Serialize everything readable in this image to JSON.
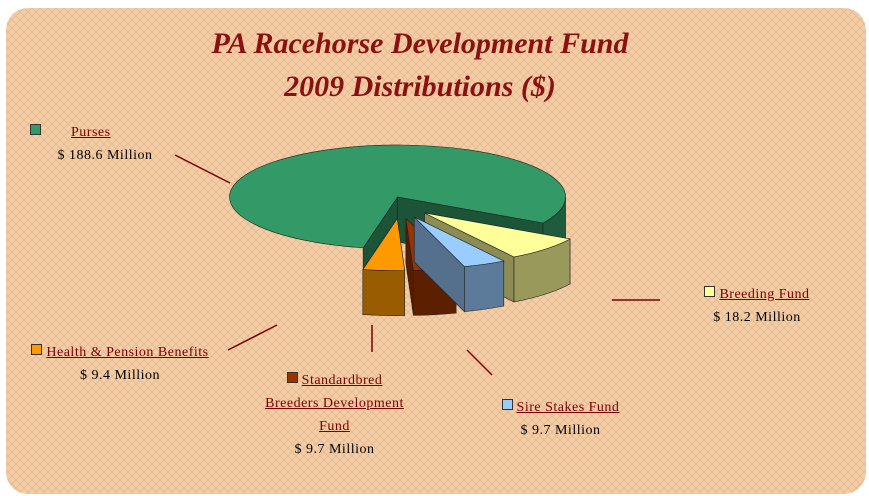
{
  "chart_data": {
    "type": "pie3d",
    "title": "PA Racehorse Development Fund",
    "subtitle": "2009 Distributions ($)",
    "categories": [
      "Purses",
      "Breeding Fund",
      "Sire Stakes Fund",
      "Standardbred Breeders Development Fund",
      "Health & Pension Benefits"
    ],
    "values": [
      188.6,
      18.2,
      9.7,
      9.7,
      9.4
    ],
    "value_labels": [
      "$ 188.6 Million",
      "$ 18.2 Million",
      "$ 9.7 Million",
      "$ 9.7 Million",
      "$ 9.4 Million"
    ],
    "colors": [
      "#339966",
      "#ffff99",
      "#99ccff",
      "#993300",
      "#ff9900"
    ]
  }
}
